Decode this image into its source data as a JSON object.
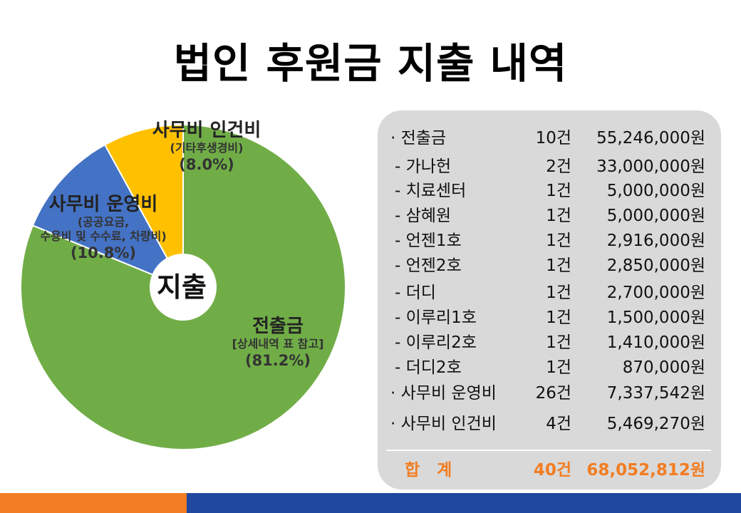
{
  "title": "법인 후원금 지출 내역",
  "chart_data": {
    "type": "pie",
    "center_label": "지출",
    "slices": [
      {
        "name": "전출금",
        "detail": "[상세내역 표 참고]",
        "percent_label": "(81.2%)",
        "value": 81.2,
        "color": "#70ad47"
      },
      {
        "name": "사무비 운영비",
        "detail_lines": [
          "(공공요금,",
          "수용비 및 수수료, 차량비)"
        ],
        "percent_label": "(10.8%)",
        "value": 10.8,
        "color": "#4472c4"
      },
      {
        "name": "사무비 인건비",
        "detail": "(기타후생경비)",
        "percent_label": "(8.0%)",
        "value": 8.0,
        "color": "#ffc000"
      }
    ]
  },
  "table": {
    "rows": [
      {
        "name": "· 전출금",
        "count": "10건",
        "amount": "55,246,000원",
        "sub": false
      },
      {
        "name": "- 가나헌",
        "count": "2건",
        "amount": "33,000,000원",
        "sub": true
      },
      {
        "name": "- 치료센터",
        "count": "1건",
        "amount": "5,000,000원",
        "sub": true
      },
      {
        "name": "- 삼혜원",
        "count": "1건",
        "amount": "5,000,000원",
        "sub": true
      },
      {
        "name": "- 언젠1호",
        "count": "1건",
        "amount": "2,916,000원",
        "sub": true
      },
      {
        "name": "- 언젠2호",
        "count": "1건",
        "amount": "2,850,000원",
        "sub": true
      },
      {
        "name": "- 더디",
        "count": "1건",
        "amount": "2,700,000원",
        "sub": true
      },
      {
        "name": "- 이루리1호",
        "count": "1건",
        "amount": "1,500,000원",
        "sub": true
      },
      {
        "name": "- 이루리2호",
        "count": "1건",
        "amount": "1,410,000원",
        "sub": true
      },
      {
        "name": "- 더디2호",
        "count": "1건",
        "amount": "870,000원",
        "sub": true
      },
      {
        "name": "· 사무비 운영비",
        "count": "26건",
        "amount": "7,337,542원",
        "sub": false
      },
      {
        "name": "· 사무비 인건비",
        "count": "4건",
        "amount": "5,469,270원",
        "sub": false
      }
    ],
    "total": {
      "name": "합   계",
      "count": "40건",
      "amount": "68,052,812원"
    }
  }
}
